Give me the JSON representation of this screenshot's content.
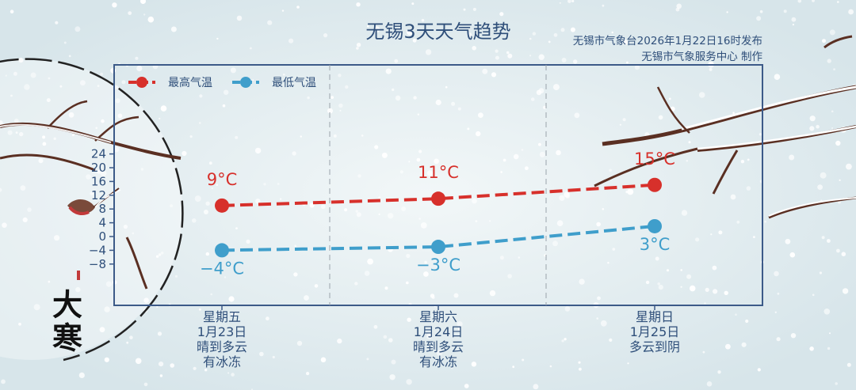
{
  "header": {
    "title": "无锡3天天气趋势",
    "source_line1": "无锡市气象台2026年1月22日16时发布",
    "source_line2": "无锡市气象服务中心 制作"
  },
  "badge": {
    "text": "大寒"
  },
  "colors": {
    "high": "#d7302b",
    "low": "#3f9ecb",
    "text": "#2f4f7a",
    "frame": "#3c5a88"
  },
  "chart_data": {
    "type": "line",
    "title": "无锡3天天气趋势",
    "categories": [
      [
        "星期五",
        "1月23日",
        "晴到多云",
        "有冰冻"
      ],
      [
        "星期六",
        "1月24日",
        "晴到多云",
        "有冰冻"
      ],
      [
        "星期日",
        "1月25日",
        "多云到阴"
      ]
    ],
    "series": [
      {
        "name": "最高气温",
        "values": [
          9,
          11,
          15
        ],
        "labels": [
          "9°C",
          "11°C",
          "15°C"
        ]
      },
      {
        "name": "最低气温",
        "values": [
          -4,
          -3,
          3
        ],
        "labels": [
          "−4°C",
          "−3°C",
          "3°C"
        ]
      }
    ],
    "yticks": [
      "−8",
      "−4",
      "0",
      "4",
      "8",
      "12",
      "16",
      "20",
      "24"
    ],
    "ylim": [
      -10,
      25
    ],
    "grid": "vertical-dashed",
    "legend": "top-left"
  }
}
